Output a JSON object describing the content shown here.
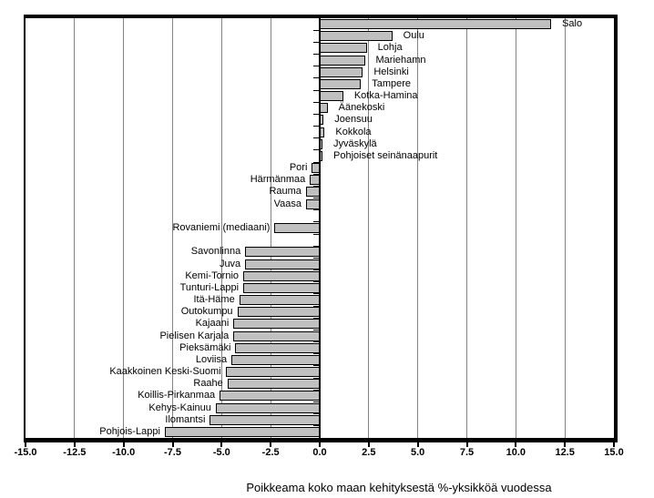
{
  "chart_data": {
    "type": "bar",
    "orientation": "horizontal",
    "title": "",
    "xlabel": "Poikkeama koko maan kehityksestä %-yksikköä vuodessa",
    "ylabel": "",
    "xlim": [
      -15.0,
      15.0
    ],
    "xtick_step": 2.5,
    "xtick_labels": [
      "-15.0",
      "-12.5",
      "-10.0",
      "-7.5",
      "-5.0",
      "-2.5",
      "0.0",
      "2.5",
      "5.0",
      "7.5",
      "10.0",
      "12.5",
      "15.0"
    ],
    "grid": true,
    "legend": false,
    "rows": [
      {
        "label": "Salo",
        "value": 11.8
      },
      {
        "label": "Oulu",
        "value": 3.7
      },
      {
        "label": "Lohja",
        "value": 2.4
      },
      {
        "label": "Mariehamn",
        "value": 2.3
      },
      {
        "label": "Helsinki",
        "value": 2.2
      },
      {
        "label": "Tampere",
        "value": 2.1
      },
      {
        "label": "Kotka-Hamina",
        "value": 1.2
      },
      {
        "label": "Äänekoski",
        "value": 0.4
      },
      {
        "label": "Joensuu",
        "value": 0.2
      },
      {
        "label": "Kokkola",
        "value": 0.25
      },
      {
        "label": "Jyväskylä",
        "value": 0.1
      },
      {
        "label": "Pohjoiset seinänaapurit",
        "value": 0.1
      },
      {
        "label": "Pori",
        "value": -0.4
      },
      {
        "label": "Härmänmaa",
        "value": -0.5
      },
      {
        "label": "Rauma",
        "value": -0.7
      },
      {
        "label": "Vaasa",
        "value": -0.7
      },
      {
        "label": "",
        "value": null
      },
      {
        "label": "Rovaniemi (mediaani)",
        "value": -2.3
      },
      {
        "label": "",
        "value": null
      },
      {
        "label": "Savonlinna",
        "value": -3.8
      },
      {
        "label": "Juva",
        "value": -3.8
      },
      {
        "label": "Kemi-Tornio",
        "value": -3.9
      },
      {
        "label": "Tunturi-Lappi",
        "value": -3.9
      },
      {
        "label": "Itä-Häme",
        "value": -4.1
      },
      {
        "label": "Outokumpu",
        "value": -4.2
      },
      {
        "label": "Kajaani",
        "value": -4.4
      },
      {
        "label": "Pielisen Karjala",
        "value": -4.4
      },
      {
        "label": "Pieksämäki",
        "value": -4.3
      },
      {
        "label": "Loviisa",
        "value": -4.5
      },
      {
        "label": "Kaakkoinen Keski-Suomi",
        "value": -4.8
      },
      {
        "label": "Raahe",
        "value": -4.7
      },
      {
        "label": "Koillis-Pirkanmaa",
        "value": -5.1
      },
      {
        "label": "Kehys-Kainuu",
        "value": -5.3
      },
      {
        "label": "Ilomantsi",
        "value": -5.6
      },
      {
        "label": "Pohjois-Lappi",
        "value": -7.9
      }
    ],
    "colors": {
      "bar_fill": "#c0c0c0",
      "bar_border": "#000000",
      "gridline": "#848484",
      "axis": "#000000",
      "background": "#ffffff",
      "text": "#000000"
    }
  }
}
